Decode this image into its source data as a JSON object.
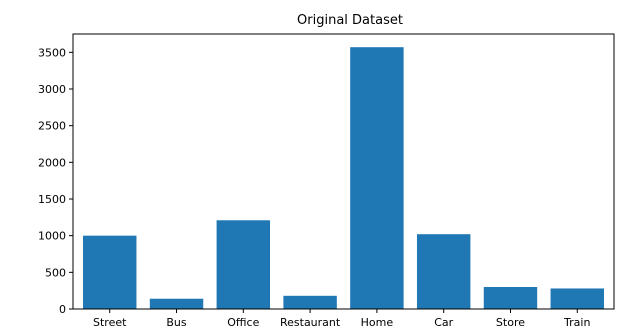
{
  "chart_data": {
    "type": "bar",
    "title": "Original Dataset",
    "xlabel": "",
    "ylabel": "",
    "categories": [
      "Street",
      "Bus",
      "Office",
      "Restaurant",
      "Home",
      "Car",
      "Store",
      "Train"
    ],
    "values": [
      1000,
      140,
      1210,
      180,
      3570,
      1020,
      300,
      280
    ],
    "ylim": [
      0,
      3750
    ],
    "yticks": [
      0,
      500,
      1000,
      1500,
      2000,
      2500,
      3000,
      3500
    ],
    "grid": false,
    "legend": "none",
    "bar_color": "#1f77b4"
  }
}
